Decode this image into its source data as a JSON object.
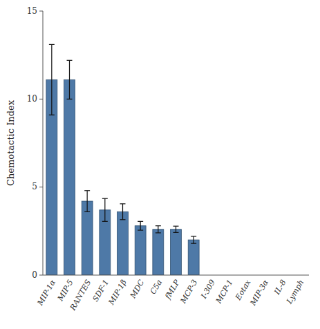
{
  "chart_data": {
    "type": "bar",
    "categories": [
      "MIP-1α",
      "MIP-5",
      "RANTES",
      "SDF-1",
      "MIP-1β",
      "MDC",
      "C5a",
      "fMLP",
      "MCP-3",
      "I-309",
      "MCP-1",
      "Eotax",
      "MIP-3α",
      "IL-8",
      "Lymph"
    ],
    "values": [
      11.1,
      11.1,
      4.2,
      3.7,
      3.6,
      2.8,
      2.6,
      2.6,
      2.0,
      0,
      0,
      0,
      0,
      0,
      0
    ],
    "errors": [
      2.0,
      1.1,
      0.6,
      0.65,
      0.45,
      0.25,
      0.2,
      0.18,
      0.2,
      0,
      0,
      0,
      0,
      0,
      0
    ],
    "ylim": [
      0,
      15
    ],
    "yticks": [
      0,
      5,
      10,
      15
    ],
    "ylabel": "Chemotactic Index",
    "grid": false
  }
}
